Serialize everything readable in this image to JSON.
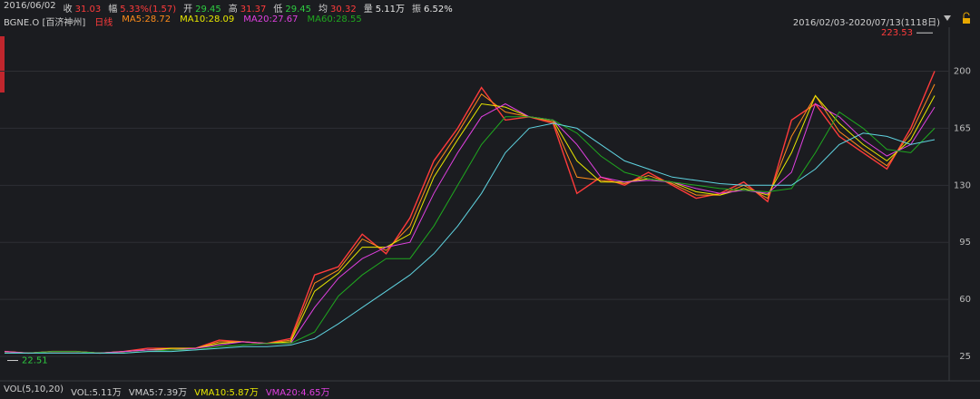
{
  "header": {
    "date": "2016/06/02",
    "quote": [
      {
        "label": "收",
        "value": "31.03",
        "color": "#ff3b3b"
      },
      {
        "label": "幅",
        "value": "5.33%(1.57)",
        "color": "#ff3b3b"
      },
      {
        "label": "开",
        "value": "29.45",
        "color": "#2ecc40"
      },
      {
        "label": "高",
        "value": "31.37",
        "color": "#ff3b3b"
      },
      {
        "label": "低",
        "value": "29.45",
        "color": "#2ecc40"
      },
      {
        "label": "均",
        "value": "30.32",
        "color": "#ff3b3b"
      },
      {
        "label": "量",
        "value": "5.11万",
        "color": "#e6e6e6"
      },
      {
        "label": "振",
        "value": "6.52%",
        "color": "#e6e6e6"
      }
    ],
    "symbol": "BGNE.O [百济神州]",
    "range": "2016/02/03-2020/07/13(1118日)"
  },
  "volume_panel": {
    "items": [
      {
        "text": "VOL(5,10,20)",
        "color": "#cfcfcf"
      },
      {
        "text": "VOL:5.11万",
        "color": "#cfcfcf"
      },
      {
        "text": "VMA5:7.39万",
        "color": "#cfcfcf"
      },
      {
        "text": "VMA10:5.87万",
        "color": "#e8e800"
      },
      {
        "text": "VMA20:4.65万",
        "color": "#e040e0"
      }
    ]
  },
  "chart_data": {
    "type": "line",
    "high_marker": 223.53,
    "low_marker": 22.51,
    "categories": [
      null,
      null,
      null,
      null,
      null,
      null,
      null,
      null,
      null,
      null,
      null,
      null,
      null,
      null,
      null,
      null,
      null,
      null,
      null,
      null,
      null,
      null,
      null,
      null,
      null,
      null,
      null,
      null,
      null,
      null,
      null,
      null,
      null,
      null,
      null,
      null,
      null,
      null,
      null,
      null
    ],
    "ylim": [
      10,
      227
    ],
    "yticks": [
      25,
      60,
      95,
      130,
      165,
      200
    ],
    "grid": true,
    "series": [
      {
        "name": "日线",
        "color": "#ff3b3b",
        "values": [
          28,
          27,
          28,
          28,
          27,
          28,
          30,
          30,
          30,
          35,
          34,
          33,
          36,
          75,
          80,
          100,
          88,
          110,
          145,
          165,
          190,
          170,
          172,
          168,
          125,
          135,
          130,
          138,
          130,
          122,
          125,
          132,
          120,
          170,
          180,
          160,
          150,
          140,
          165,
          200
        ]
      },
      {
        "name": "MA5:28.72",
        "color": "#ff8c1a",
        "values": [
          28,
          27,
          28,
          28,
          27,
          28,
          29,
          30,
          30,
          34,
          34,
          33,
          35,
          70,
          78,
          97,
          90,
          105,
          140,
          162,
          186,
          175,
          172,
          169,
          135,
          133,
          131,
          136,
          131,
          124,
          124,
          130,
          122,
          160,
          185,
          163,
          152,
          142,
          162,
          192
        ]
      },
      {
        "name": "MA10:28.09",
        "color": "#e8e800",
        "values": [
          28,
          27,
          28,
          28,
          27,
          28,
          29,
          30,
          30,
          33,
          34,
          33,
          34,
          65,
          76,
          92,
          92,
          100,
          135,
          158,
          180,
          178,
          172,
          170,
          145,
          132,
          132,
          134,
          132,
          126,
          124,
          128,
          124,
          150,
          185,
          168,
          155,
          145,
          158,
          185
        ]
      },
      {
        "name": "MA20:27.67",
        "color": "#e040e0",
        "values": [
          28,
          27,
          28,
          28,
          27,
          28,
          29,
          29,
          30,
          32,
          34,
          33,
          33,
          55,
          73,
          85,
          92,
          95,
          125,
          150,
          172,
          180,
          172,
          170,
          155,
          135,
          132,
          133,
          132,
          128,
          125,
          127,
          125,
          138,
          180,
          172,
          158,
          148,
          155,
          178
        ]
      },
      {
        "name": "MA60:28.55",
        "color": "#1fa81f",
        "values": [
          27,
          27,
          28,
          28,
          27,
          27,
          28,
          29,
          29,
          31,
          32,
          33,
          33,
          40,
          62,
          75,
          85,
          85,
          105,
          130,
          155,
          172,
          172,
          170,
          162,
          148,
          138,
          134,
          132,
          130,
          128,
          127,
          126,
          128,
          150,
          175,
          165,
          152,
          150,
          165
        ]
      },
      {
        "color": "#5fd3e0",
        "values": [
          27,
          27,
          27,
          27,
          27,
          27,
          28,
          28,
          29,
          30,
          31,
          31,
          32,
          36,
          45,
          55,
          65,
          75,
          88,
          105,
          125,
          150,
          165,
          168,
          165,
          155,
          145,
          140,
          135,
          133,
          131,
          130,
          130,
          130,
          140,
          155,
          162,
          160,
          155,
          158
        ]
      }
    ]
  }
}
